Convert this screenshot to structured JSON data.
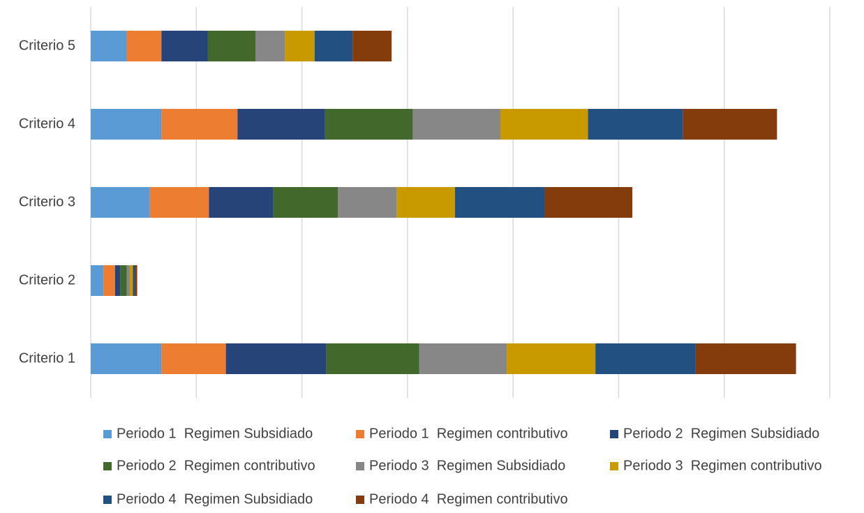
{
  "chart_data": {
    "type": "stacked-barh",
    "categories": [
      "Criterio 1",
      "Criterio 2",
      "Criterio 3",
      "Criterio 4",
      "Criterio 5"
    ],
    "series": [
      {
        "name": "Periodo 1  Regimen Subsidiado",
        "color": "#5b9bd5",
        "values": [
          0.67,
          0.12,
          0.56,
          0.67,
          0.34
        ]
      },
      {
        "name": "Periodo 1  Regimen contributivo",
        "color": "#ed7d31",
        "values": [
          0.61,
          0.11,
          0.56,
          0.72,
          0.33
        ]
      },
      {
        "name": "Periodo 2  Regimen Subsidiado",
        "color": "#264478",
        "values": [
          0.95,
          0.05,
          0.61,
          0.83,
          0.44
        ]
      },
      {
        "name": "Periodo 2  Regimen contributivo",
        "color": "#43682b",
        "values": [
          0.88,
          0.06,
          0.61,
          0.83,
          0.45
        ]
      },
      {
        "name": "Periodo 3  Regimen Subsidiado",
        "color": "#878787",
        "values": [
          0.83,
          0.03,
          0.56,
          0.83,
          0.28
        ]
      },
      {
        "name": "Periodo 3  Regimen contributivo",
        "color": "#c99a00",
        "values": [
          0.84,
          0.03,
          0.55,
          0.83,
          0.28
        ]
      },
      {
        "name": "Periodo 4  Regimen Subsidiado",
        "color": "#215081",
        "values": [
          0.95,
          0.02,
          0.85,
          0.9,
          0.36
        ]
      },
      {
        "name": "Periodo 4  Regimen contributivo",
        "color": "#843c0c",
        "values": [
          0.95,
          0.02,
          0.83,
          0.89,
          0.37
        ]
      }
    ],
    "xlim": [
      0,
      7
    ],
    "xticks": [
      0,
      1,
      2,
      3,
      4,
      5,
      6,
      7
    ],
    "grid": true,
    "legend": "bottom"
  }
}
